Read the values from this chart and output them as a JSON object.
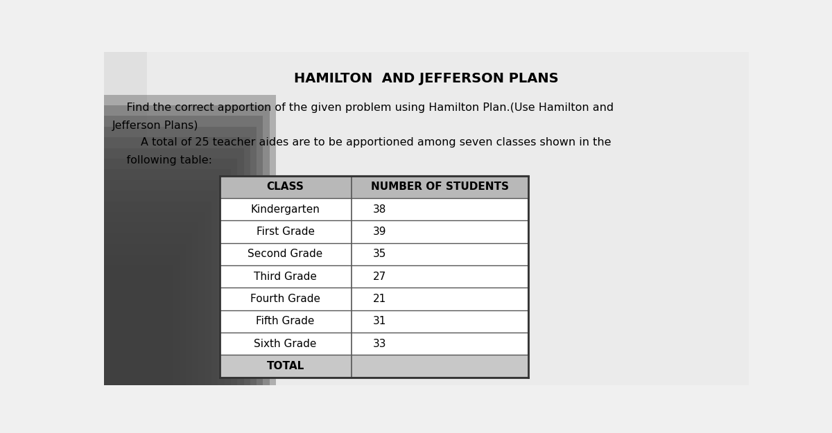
{
  "title": "HAMILTON  AND JEFFERSON PLANS",
  "subtitle_line1": "    Find the correct apportion of the given problem using Hamilton Plan.(Use Hamilton and",
  "subtitle_line2": "Jefferson Plans)",
  "subtitle_line3": "        A total of 25 teacher aides are to be apportioned among seven classes shown in the",
  "subtitle_line4": "    following table:",
  "col1_header": "CLASS",
  "col2_header": "NUMBER OF STUDENTS",
  "classes": [
    "Kindergarten",
    "First Grade",
    "Second Grade",
    "Third Grade",
    "Fourth Grade",
    "Fifth Grade",
    "Sixth Grade",
    "TOTAL"
  ],
  "students": [
    "38",
    "39",
    "35",
    "27",
    "21",
    "31",
    "33",
    ""
  ],
  "bg_light": "#d8d8d8",
  "bg_white": "#f0f0f0",
  "shadow_dark": "#888888",
  "table_white": "#f5f5f5",
  "header_gray": "#c0c0c0",
  "title_fontsize": 14,
  "text_fontsize": 11.5,
  "table_fontsize": 11
}
